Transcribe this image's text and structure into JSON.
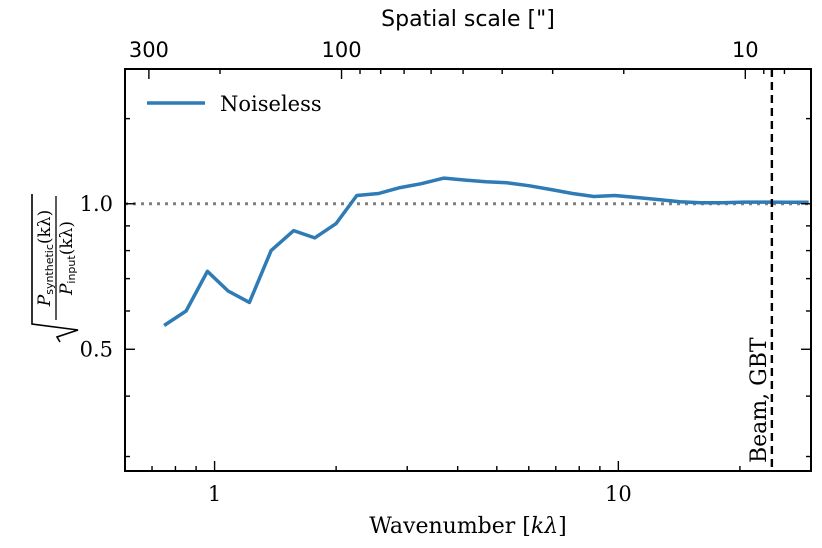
{
  "chart_data": {
    "type": "line",
    "x_scale": "log",
    "y_scale": "log",
    "xlabel": "Wavenumber [kλ]",
    "xlabel_parts": {
      "text": "Wavenumber [",
      "italic": "kλ",
      "end": "]"
    },
    "ylabel": "sqrt(P_synthetic(kλ) / P_input(kλ))",
    "ylabel_parts": {
      "num_P": "P",
      "num_sub": "synthetic",
      "num_arg": "(kλ)",
      "den_P": "P",
      "den_sub": "input",
      "den_arg": "(kλ)"
    },
    "xlim": [
      0.6,
      30
    ],
    "ylim": [
      0.28,
      1.9
    ],
    "x_ticks": [
      {
        "value": 1,
        "label": "1"
      },
      {
        "value": 10,
        "label": "10"
      }
    ],
    "y_ticks": [
      {
        "value": 0.5,
        "label": "0.5"
      },
      {
        "value": 1.0,
        "label": "1.0"
      }
    ],
    "top_axis": {
      "title": "Spatial scale [\"]",
      "ticks": [
        {
          "value": 300,
          "label": "300"
        },
        {
          "value": 100,
          "label": "100"
        },
        {
          "value": 10,
          "label": "10"
        }
      ],
      "relation": "scale_arcsec = 206.265 / wavenumber_klambda"
    },
    "series": [
      {
        "name": "Noiseless",
        "color": "#2f7bb6",
        "x": [
          0.75,
          0.85,
          0.96,
          1.08,
          1.22,
          1.38,
          1.57,
          1.77,
          2.0,
          2.25,
          2.55,
          2.88,
          3.25,
          3.7,
          4.15,
          4.7,
          5.3,
          6.0,
          6.8,
          7.7,
          8.7,
          9.8,
          11.1,
          12.6,
          14.2,
          16.0,
          18.1,
          20.5,
          23.2,
          26.2,
          29.6
        ],
        "y": [
          0.56,
          0.6,
          0.725,
          0.66,
          0.625,
          0.8,
          0.88,
          0.85,
          0.91,
          1.04,
          1.05,
          1.08,
          1.1,
          1.13,
          1.12,
          1.11,
          1.105,
          1.09,
          1.07,
          1.05,
          1.035,
          1.04,
          1.03,
          1.02,
          1.01,
          1.005,
          1.005,
          1.008,
          1.008,
          1.007,
          1.007
        ]
      }
    ],
    "reference_line": {
      "y": 1.0,
      "style": "dotted",
      "color": "#808080"
    },
    "vertical_line": {
      "x": 24.0,
      "style": "dashed",
      "label": "Beam, GBT"
    },
    "legend": {
      "position": "top-left",
      "entries": [
        "Noiseless"
      ]
    }
  }
}
